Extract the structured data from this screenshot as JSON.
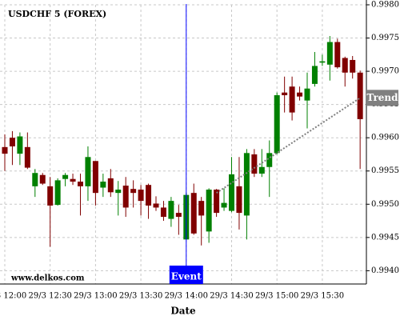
{
  "chart_data": {
    "type": "candlestick",
    "title": "USDCHF 5 (FOREX)",
    "source": "www.delkos.com",
    "x_label": "Date",
    "categories": [
      "29/3 12:00",
      null,
      null,
      null,
      null,
      null,
      "29/3 12:30",
      null,
      null,
      null,
      null,
      null,
      "29/3 13:00",
      null,
      null,
      null,
      null,
      null,
      "29/3 13:30",
      null,
      null,
      null,
      null,
      null,
      "29/3 14:00",
      null,
      null,
      null,
      null,
      null,
      "29/3 14:30",
      null,
      null,
      null,
      null,
      null,
      "29/3 15:00",
      null,
      null,
      null,
      null,
      null,
      "29/3 15:30",
      null,
      null,
      null,
      null,
      null
    ],
    "open": [
      0.99586,
      0.996,
      0.99576,
      0.99586,
      0.99527,
      0.99544,
      0.99527,
      0.99499,
      0.99538,
      0.99538,
      0.99534,
      0.99527,
      0.99565,
      0.99525,
      0.99539,
      0.99517,
      0.99528,
      0.99523,
      0.99522,
      0.99529,
      0.99501,
      0.99495,
      0.99478,
      0.99487,
      0.99447,
      0.99517,
      0.99505,
      0.99459,
      0.99522,
      0.99495,
      0.9949,
      0.99527,
      0.99483,
      0.99575,
      0.99546,
      0.99556,
      0.99577,
      0.99668,
      0.99677,
      0.99668,
      0.99656,
      0.99681,
      0.99713,
      0.9971,
      0.99744,
      0.9972,
      0.99717,
      0.99698
    ],
    "high": [
      0.99605,
      0.9961,
      0.99608,
      0.99608,
      0.99553,
      0.99547,
      0.99541,
      0.99539,
      0.99547,
      0.99546,
      0.99546,
      0.99587,
      0.99565,
      0.99546,
      0.99553,
      0.99535,
      0.99541,
      0.99536,
      0.99529,
      0.99531,
      0.99512,
      0.99505,
      0.99511,
      0.99499,
      0.99517,
      0.99531,
      0.99511,
      0.99524,
      0.99523,
      0.99524,
      0.99571,
      0.99571,
      0.99583,
      0.99583,
      0.99583,
      0.99596,
      0.99668,
      0.99692,
      0.99692,
      0.99677,
      0.99698,
      0.99729,
      0.99725,
      0.99753,
      0.99749,
      0.99722,
      0.99723,
      0.99701
    ],
    "low": [
      0.9955,
      0.99559,
      0.99559,
      0.99553,
      0.99511,
      0.99529,
      0.99436,
      0.99498,
      0.99527,
      0.99529,
      0.99483,
      0.99505,
      0.99498,
      0.99511,
      0.99511,
      0.99483,
      0.99481,
      0.99495,
      0.99483,
      0.99478,
      0.9949,
      0.99475,
      0.99466,
      0.99454,
      0.99447,
      0.99454,
      0.99438,
      0.99442,
      0.99481,
      0.9949,
      0.99488,
      0.99462,
      0.99447,
      0.99541,
      0.99541,
      0.99511,
      0.99575,
      0.99638,
      0.99626,
      0.99656,
      0.99614,
      0.99677,
      0.99708,
      0.99686,
      0.99704,
      0.99677,
      0.99689,
      0.99553
    ],
    "close": [
      0.99576,
      0.99587,
      0.99602,
      0.99555,
      0.99547,
      0.99531,
      0.99498,
      0.99536,
      0.99544,
      0.99534,
      0.99527,
      0.99571,
      0.99517,
      0.99534,
      0.99518,
      0.99522,
      0.99495,
      0.99517,
      0.99505,
      0.99498,
      0.99495,
      0.99481,
      0.99505,
      0.99481,
      0.99514,
      0.99456,
      0.99483,
      0.99522,
      0.99487,
      0.99502,
      0.99545,
      0.99487,
      0.99577,
      0.99546,
      0.99556,
      0.99577,
      0.99664,
      0.99664,
      0.99638,
      0.99662,
      0.99674,
      0.99708,
      0.99715,
      0.99744,
      0.99706,
      0.99698,
      0.99698,
      0.99628
    ],
    "up_color": "#008000",
    "down_color": "#800000",
    "ylim": [
      0.9938,
      0.998
    ],
    "yticks": [
      {
        "value": 0.994,
        "label": "0.9940"
      },
      {
        "value": 0.9945,
        "label": "0.9945"
      },
      {
        "value": 0.995,
        "label": "0.9950"
      },
      {
        "value": 0.9955,
        "label": "0.9955"
      },
      {
        "value": 0.996,
        "label": "0.9960"
      },
      {
        "value": 0.9965,
        "label": "0.9965"
      },
      {
        "value": 0.997,
        "label": "0.9970"
      },
      {
        "value": 0.9975,
        "label": "0.9975"
      },
      {
        "value": 0.998,
        "label": "0.9980"
      }
    ],
    "grid": true,
    "trend": {
      "label": "Trend",
      "x": [
        28,
        47
      ],
      "y": [
        0.99517,
        0.9966
      ],
      "color": "#808080"
    },
    "event": {
      "label": "Event",
      "x": 24,
      "color": "#0000ff"
    }
  }
}
